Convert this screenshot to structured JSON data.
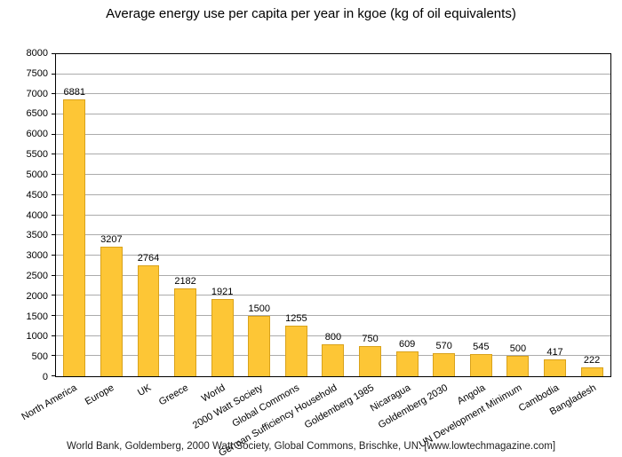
{
  "title": "Average energy use per capita per year in kgoe (kg of oil equivalents)",
  "footer": "World Bank, Goldemberg, 2000 Watt Society, Global Commons, Brischke, UN. [www.lowtechmagazine.com]",
  "chart_data": {
    "type": "bar",
    "title": "Average energy use per capita per year in kgoe (kg of oil equivalents)",
    "categories": [
      "North America",
      "Europe",
      "UK",
      "Greece",
      "World",
      "2000 Watt Society",
      "Global Commons",
      "German Sufficiency Household",
      "Goldemberg 1985",
      "Nicaragua",
      "Goldemberg 2030",
      "Angola",
      "UN Development Minimum",
      "Cambodia",
      "Bangladesh"
    ],
    "values": [
      6881,
      3207,
      2764,
      2182,
      1921,
      1500,
      1255,
      800,
      750,
      609,
      570,
      545,
      500,
      417,
      222
    ],
    "xlabel": "",
    "ylabel": "",
    "ylim": [
      0,
      8000
    ],
    "ytick_step": 500,
    "grid": true,
    "legend": "none",
    "bar_color": "#FDC636",
    "bar_border_color": "#D9A21B",
    "grid_color": "#ABABAB",
    "x_label_rotation_deg": -30
  }
}
